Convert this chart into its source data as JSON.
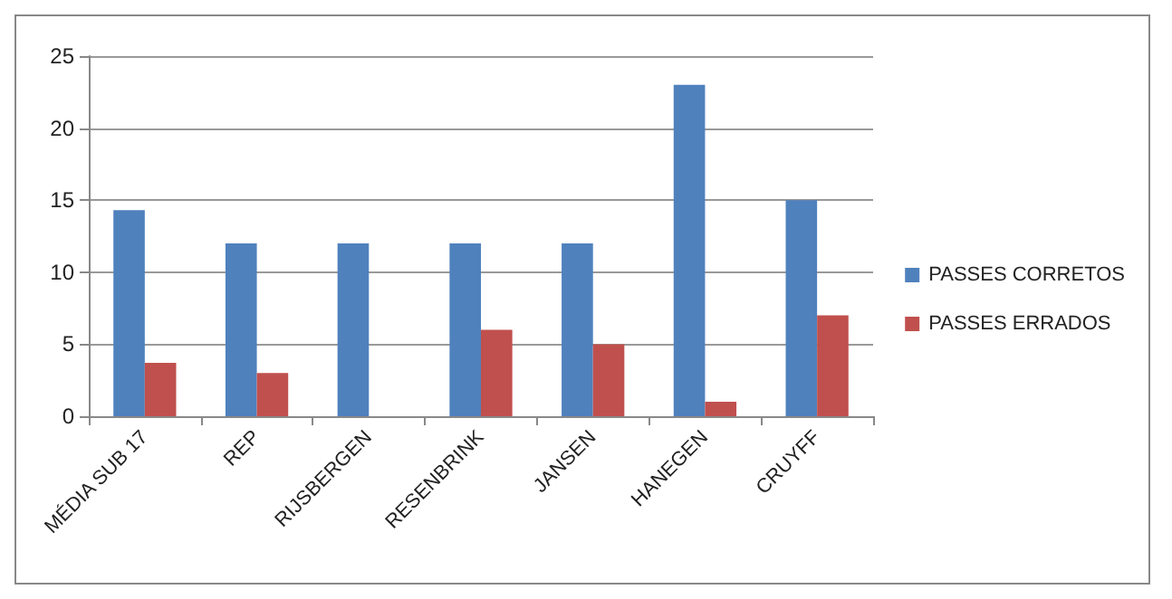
{
  "chart_data": {
    "type": "bar",
    "categories": [
      "MÉDIA SUB 17",
      "REP",
      "RIJSBERGEN",
      "RESENBRINK",
      "JANSEN",
      "HANEGEN",
      "CRUYFF"
    ],
    "series": [
      {
        "name": "PASSES CORRETOS",
        "color": "#4f81bd",
        "values": [
          14.3,
          12,
          12,
          12,
          12,
          23,
          15
        ]
      },
      {
        "name": "PASSES ERRADOS",
        "color": "#c0504d",
        "values": [
          3.7,
          3,
          0,
          6,
          5,
          1,
          7
        ]
      }
    ],
    "ylim": [
      0,
      25
    ],
    "yticks": [
      0,
      5,
      10,
      15,
      20,
      25
    ],
    "grid": "y",
    "legend": "right"
  }
}
